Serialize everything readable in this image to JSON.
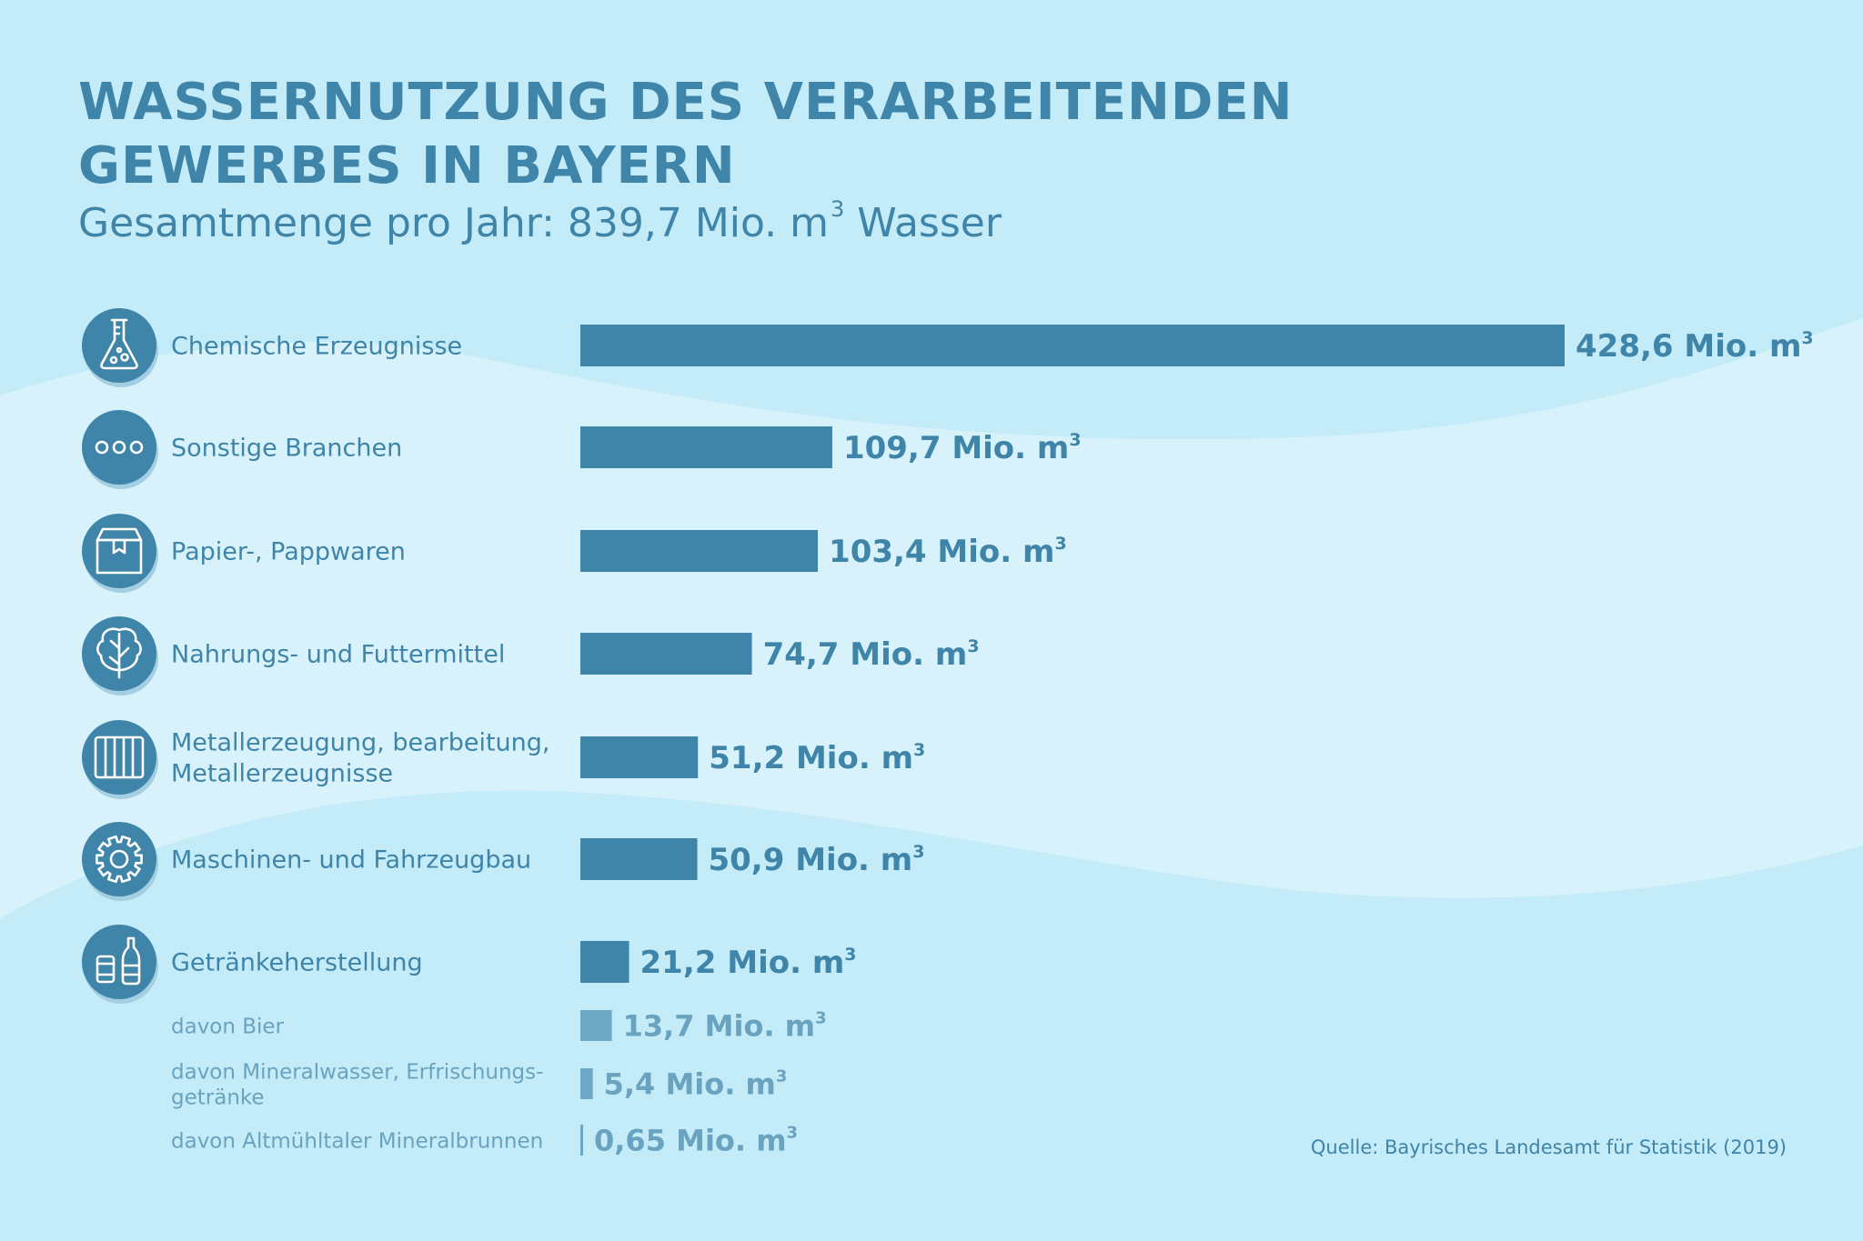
{
  "header": {
    "title_line1": "WASSERNUTZUNG DES VERARBEITENDEN",
    "title_line2": "GEWERBES IN BAYERN",
    "subtitle_prefix": "Gesamtmenge pro Jahr: 839,7 Mio. m",
    "subtitle_sup": "3",
    "subtitle_suffix": " Wasser"
  },
  "source": "Quelle: Bayrisches Landesamt für Statistik (2019)",
  "colors": {
    "background": "#c3ebf8",
    "wave_light": "#d8f2fb",
    "bar_main": "#3f84a9",
    "bar_sub": "#6ea8c4",
    "text": "#3f84a9",
    "text_sub": "#6aa3c0",
    "icon_circle": "#3f84a9",
    "icon_shadow": "#a4cfe2"
  },
  "chart_data": {
    "type": "bar",
    "orientation": "horizontal",
    "title": "WASSERNUTZUNG DES VERARBEITENDEN GEWERBES IN BAYERN",
    "subtitle": "Gesamtmenge pro Jahr: 839,7 Mio. m³ Wasser",
    "unit": "Mio. m³",
    "xlim": [
      0,
      428.6
    ],
    "items": [
      {
        "category": [
          "Chemische Erzeugnisse"
        ],
        "value": 428.6,
        "label": "428,6 Mio. m",
        "sup": "3",
        "icon": "flask-icon",
        "level": "main"
      },
      {
        "category": [
          "Sonstige Branchen"
        ],
        "value": 109.7,
        "label": "109,7 Mio. m",
        "sup": "3",
        "icon": "dots-icon",
        "level": "main"
      },
      {
        "category": [
          "Papier-, Pappwaren"
        ],
        "value": 103.4,
        "label": "103,4 Mio. m",
        "sup": "3",
        "icon": "box-icon",
        "level": "main"
      },
      {
        "category": [
          "Nahrungs- und Futtermittel"
        ],
        "value": 74.7,
        "label": "74,7 Mio. m",
        "sup": "3",
        "icon": "leaf-icon",
        "level": "main"
      },
      {
        "category": [
          "Metallerzeugung, bearbeitung,",
          "Metallerzeugnisse"
        ],
        "value": 51.2,
        "label": "51,2 Mio. m",
        "sup": "3",
        "icon": "metal-bars-icon",
        "level": "main"
      },
      {
        "category": [
          "Maschinen- und Fahrzeugbau"
        ],
        "value": 50.9,
        "label": "50,9 Mio. m",
        "sup": "3",
        "icon": "gear-icon",
        "level": "main"
      },
      {
        "category": [
          "Getränkeherstellung"
        ],
        "value": 21.2,
        "label": "21,2 Mio. m",
        "sup": "3",
        "icon": "bottle-can-icon",
        "level": "main"
      },
      {
        "category": [
          "davon Bier"
        ],
        "value": 13.7,
        "label": "13,7 Mio. m",
        "sup": "3",
        "icon": "",
        "level": "sub"
      },
      {
        "category": [
          "davon Mineralwasser, Erfrischungs-",
          "getränke"
        ],
        "value": 5.4,
        "label": "5,4 Mio. m",
        "sup": "3",
        "icon": "",
        "level": "sub"
      },
      {
        "category": [
          "davon Altmühltaler Mineralbrunnen"
        ],
        "value": 0.65,
        "label": "0,65 Mio. m",
        "sup": "3",
        "icon": "",
        "level": "sub"
      }
    ]
  }
}
